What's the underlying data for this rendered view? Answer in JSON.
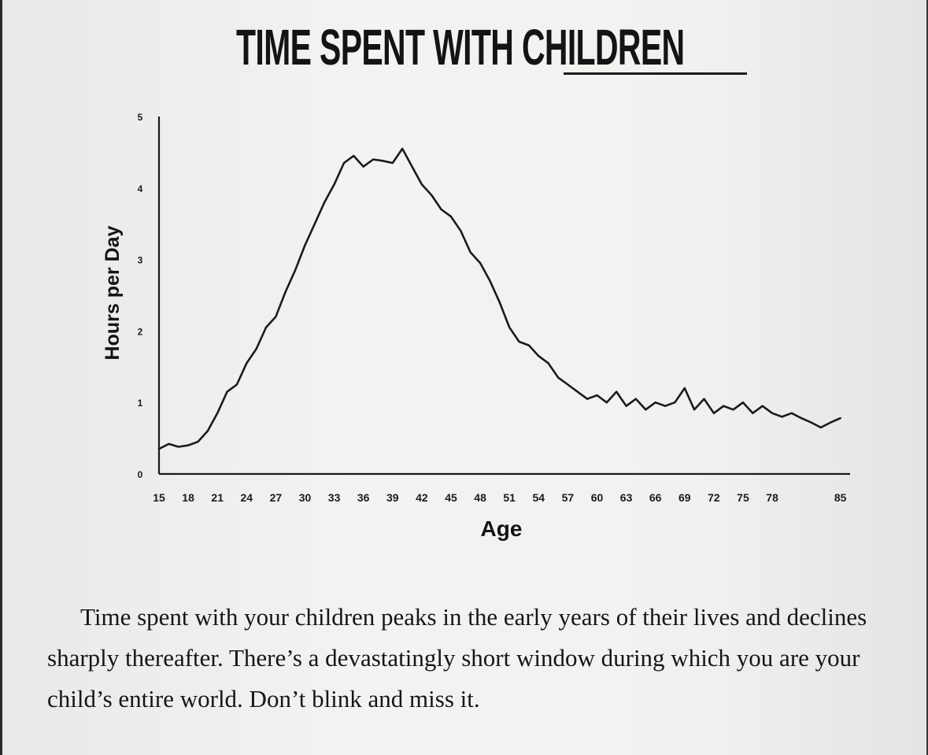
{
  "title": "TIME SPENT WITH CHILDREN",
  "caption": "Time spent with your children peaks in the early years of their lives and declines sharply thereafter. There’s a devastatingly short window during which you are your child’s entire world. Don’t blink and miss it.",
  "colors": {
    "ink": "#1b1b1b",
    "paper": "#f1f1ef"
  },
  "chart_data": {
    "type": "line",
    "title": "TIME SPENT WITH CHILDREN",
    "xlabel": "Age",
    "ylabel": "Hours per Day",
    "xlim": [
      15,
      86
    ],
    "ylim": [
      0,
      5
    ],
    "x_ticks": [
      "15",
      "18",
      "21",
      "24",
      "27",
      "30",
      "33",
      "36",
      "39",
      "42",
      "45",
      "48",
      "51",
      "54",
      "57",
      "60",
      "63",
      "66",
      "69",
      "72",
      "75",
      "78",
      "85"
    ],
    "y_ticks": [
      "0",
      "1",
      "2",
      "3",
      "4",
      "5"
    ],
    "grid": false,
    "series": [
      {
        "name": "Hours per Day",
        "x": [
          15,
          16,
          17,
          18,
          19,
          20,
          21,
          22,
          23,
          24,
          25,
          26,
          27,
          28,
          29,
          30,
          31,
          32,
          33,
          34,
          35,
          36,
          37,
          38,
          39,
          40,
          41,
          42,
          43,
          44,
          45,
          46,
          47,
          48,
          49,
          50,
          51,
          52,
          53,
          54,
          55,
          56,
          57,
          58,
          59,
          60,
          61,
          62,
          63,
          64,
          65,
          66,
          67,
          68,
          69,
          70,
          71,
          72,
          73,
          74,
          75,
          76,
          77,
          78,
          79,
          80,
          81,
          82,
          83,
          84,
          85
        ],
        "values": [
          0.35,
          0.42,
          0.38,
          0.4,
          0.45,
          0.6,
          0.85,
          1.15,
          1.25,
          1.55,
          1.75,
          2.05,
          2.2,
          2.55,
          2.85,
          3.2,
          3.5,
          3.8,
          4.05,
          4.35,
          4.45,
          4.3,
          4.4,
          4.38,
          4.35,
          4.55,
          4.3,
          4.05,
          3.9,
          3.7,
          3.6,
          3.4,
          3.1,
          2.95,
          2.7,
          2.4,
          2.05,
          1.85,
          1.8,
          1.65,
          1.55,
          1.35,
          1.25,
          1.15,
          1.05,
          1.1,
          1.0,
          1.15,
          0.95,
          1.05,
          0.9,
          1.0,
          0.95,
          1.0,
          1.2,
          0.9,
          1.05,
          0.85,
          0.95,
          0.9,
          1.0,
          0.85,
          0.95,
          0.85,
          0.8,
          0.85,
          0.78,
          0.72,
          0.65,
          0.72,
          0.78
        ]
      }
    ]
  }
}
